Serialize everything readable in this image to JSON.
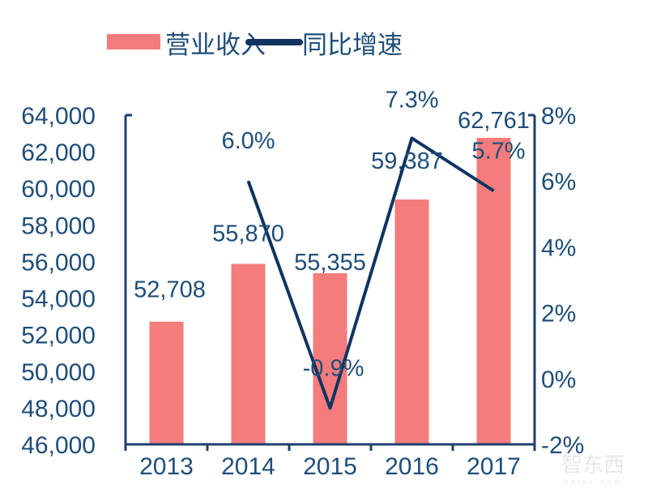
{
  "chart_data": {
    "type": "bar+line",
    "categories": [
      "2013",
      "2014",
      "2015",
      "2016",
      "2017"
    ],
    "series": [
      {
        "name": "营业收入",
        "type": "bar",
        "axis": "left",
        "values": [
          52708,
          55870,
          55355,
          59387,
          62761
        ],
        "labels": [
          "52,708",
          "55,870",
          "55,355",
          "59,387",
          "62,761"
        ]
      },
      {
        "name": "同比增速",
        "type": "line",
        "axis": "right",
        "values": [
          null,
          6.0,
          -0.9,
          7.3,
          5.7
        ],
        "labels": [
          "",
          "6.0%",
          "-0.9%",
          "7.3%",
          "5.7%"
        ]
      }
    ],
    "left_axis": {
      "ylim": [
        46000,
        64000
      ],
      "ticks": [
        "46,000",
        "48,000",
        "50,000",
        "52,000",
        "54,000",
        "56,000",
        "58,000",
        "60,000",
        "62,000",
        "64,000"
      ]
    },
    "right_axis": {
      "ylim": [
        -2,
        8
      ],
      "ticks": [
        "-2%",
        "0%",
        "2%",
        "4%",
        "6%",
        "8%"
      ]
    },
    "legend_position": "top",
    "grid": false,
    "colors": {
      "bar": "#f47c7c",
      "line": "#0f3460",
      "text": "#1f4e79",
      "axis": "#1f3f6e"
    }
  },
  "watermark": {
    "text": "智东西",
    "subtext": "zhidx.com"
  }
}
